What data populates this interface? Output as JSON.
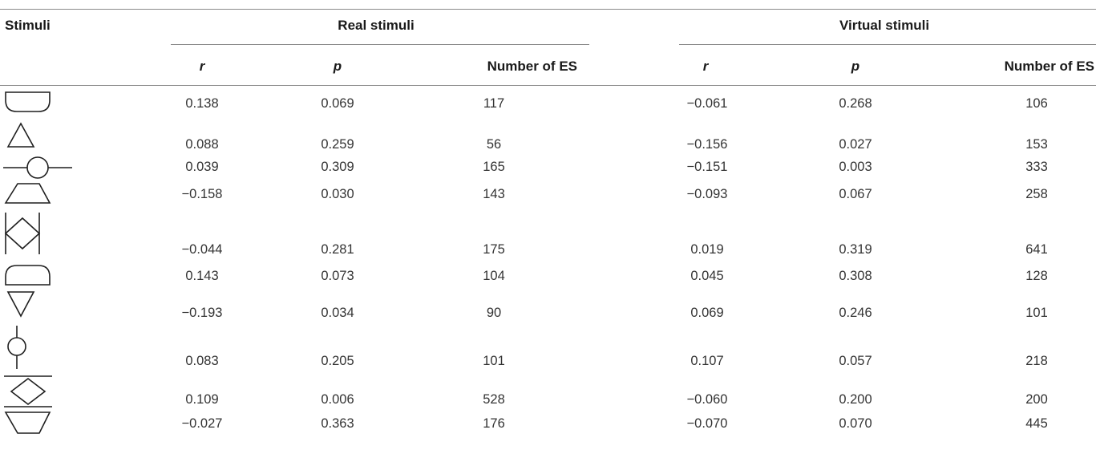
{
  "table": {
    "header": {
      "stimuli": "Stimuli",
      "real_group": "Real stimuli",
      "virtual_group": "Virtual stimuli"
    },
    "subheader": {
      "real_r": "r",
      "real_p": "p",
      "real_n": "Number of ES",
      "virtual_r": "r",
      "virtual_p": "p",
      "virtual_n": "Number of ES"
    },
    "rows": [
      {
        "stimulus_icon": "flat-top-half-round-bottom-icon",
        "real": {
          "r": "0.138",
          "p": "0.069",
          "n": "117"
        },
        "virtual": {
          "r": "−0.061",
          "p": "0.268",
          "n": "106"
        }
      },
      {
        "stimulus_icon": "triangle-up-icon",
        "real": {
          "r": "0.088",
          "p": "0.259",
          "n": "56"
        },
        "virtual": {
          "r": "−0.156",
          "p": "0.027",
          "n": "153"
        }
      },
      {
        "stimulus_icon": "circle-horizontal-line-icon",
        "real": {
          "r": "0.039",
          "p": "0.309",
          "n": "165"
        },
        "virtual": {
          "r": "−0.151",
          "p": "0.003",
          "n": "333"
        }
      },
      {
        "stimulus_icon": "trapezoid-up-icon",
        "real": {
          "r": "−0.158",
          "p": "0.030",
          "n": "143"
        },
        "virtual": {
          "r": "−0.093",
          "p": "0.067",
          "n": "258"
        }
      },
      {
        "stimulus_icon": "diamond-vertical-bars-icon",
        "real": {
          "r": "−0.044",
          "p": "0.281",
          "n": "175"
        },
        "virtual": {
          "r": "0.019",
          "p": "0.319",
          "n": "641"
        }
      },
      {
        "stimulus_icon": "half-round-top-flat-bottom-icon",
        "real": {
          "r": "0.143",
          "p": "0.073",
          "n": "104"
        },
        "virtual": {
          "r": "0.045",
          "p": "0.308",
          "n": "128"
        }
      },
      {
        "stimulus_icon": "triangle-down-icon",
        "real": {
          "r": "−0.193",
          "p": "0.034",
          "n": "90"
        },
        "virtual": {
          "r": "0.069",
          "p": "0.246",
          "n": "101"
        }
      },
      {
        "stimulus_icon": "circle-vertical-line-icon",
        "real": {
          "r": "0.083",
          "p": "0.205",
          "n": "101"
        },
        "virtual": {
          "r": "0.107",
          "p": "0.057",
          "n": "218"
        }
      },
      {
        "stimulus_icon": "diamond-horizontal-bars-icon",
        "real": {
          "r": "0.109",
          "p": "0.006",
          "n": "528"
        },
        "virtual": {
          "r": "−0.060",
          "p": "0.200",
          "n": "200"
        }
      },
      {
        "stimulus_icon": "trapezoid-down-icon",
        "real": {
          "r": "−0.027",
          "p": "0.363",
          "n": "176"
        },
        "virtual": {
          "r": "−0.070",
          "p": "0.070",
          "n": "445"
        }
      }
    ]
  }
}
